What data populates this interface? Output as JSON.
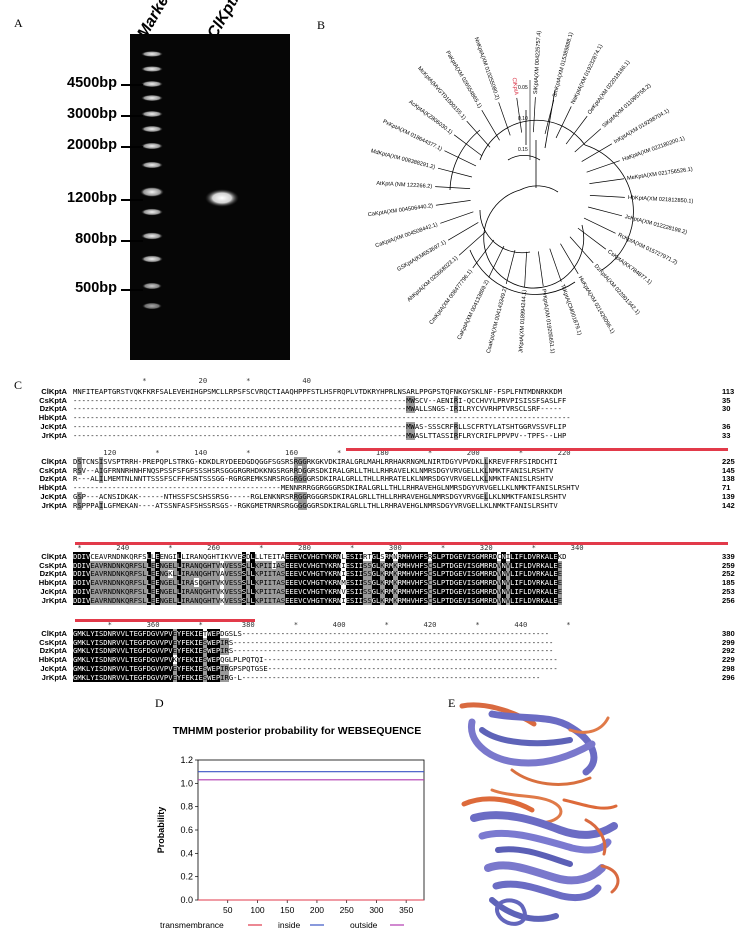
{
  "panels": {
    "a": "A",
    "b": "B",
    "c": "C",
    "d": "D",
    "e": "E"
  },
  "gel": {
    "lane_marker": "Marker",
    "lane_sample": "ClKptA",
    "marker_labels": [
      "4500bp",
      "3000bp",
      "2000bp",
      "1200bp",
      "800bp",
      "500bp"
    ]
  },
  "tree": {
    "highlight_color": "#d8263a",
    "scale_labels": [
      "0.05",
      "0.10",
      "0.15"
    ],
    "leaves": [
      "ClKptA",
      "SiKptA(XM 004225757.4)",
      "SmKptA(XM 015389888.1)",
      "NaKptA(XM 019232874.1)",
      "OeKptA(XM 022018166.1)",
      "SiKptA(XM 011095758.2)",
      "InKptA(XM 019298704.1)",
      "HaKptA(XM 022180200.1)",
      "MeKptA(XM 021756526.1)",
      "HbKptA(XM 021812850.1)",
      "JcKptA(XM 012228198.2)",
      "RcKptA(XM 015727971.2)",
      "CsKptA(KK784877.1)",
      "DzKptA(XM 022901342.1)",
      "HuKptA(XM 021426096.1)",
      "TcKptA(CM001879.1)",
      "PvKptA(XM 019205651.1)",
      "JrKptA(XM 018994244.1)",
      "CsaKptA(XM 004143349.2)",
      "CaKptA(XM 004133869.2)",
      "CmKptA(XM 008477796.1)",
      "AhKptA(XM 025668023.1)",
      "GSKptA(KM653697.1)",
      "CaKptA(XM 004508442.1)",
      "CaKptA(XM 004506440.2)",
      "AtKptA (NM 122266.2)",
      "MdKptA(XM 008388291.2)",
      "PxKptA(XM 018644377.1)",
      "AcKptA(KZ806030.1)",
      "McKptA(MVGT01000155.1)",
      "PaKptA(XM 026554865.1)",
      "NnKptA(XM 010255080.2)"
    ]
  },
  "alignment": {
    "blocks": [
      {
        "ruler": "                *            20         *            40",
        "rows": [
          {
            "name": "ClKptA",
            "seq": "MNFITEAPTGRSTVQKFKRFSALEVEHIHGPSMCLLRPSFSCVRQCTIAAQHPPFSTLHSFRQPLVTDKRYHPRLNSARLPPGPSTQFNKGYSKLNF-FSPLFNTMDNRKKDM",
            "num": "113"
          },
          {
            "name": "CsKptA",
            "seq": "-----------------------------------------------------------------------------MWSCV--AENIRI-QCCHVYLPRVPISISSFSASLFF",
            "num": "35"
          },
          {
            "name": "DzKptA",
            "seq": "-----------------------------------------------------------------------------MWALLSNGS-IRILRYCVVRHPTVRSCLSRF-----",
            "num": "30"
          },
          {
            "name": "HbKptA",
            "seq": "-------------------------------------------------------------------------------------------------------------------",
            "num": ""
          },
          {
            "name": "JcKptA",
            "seq": "-----------------------------------------------------------------------------MWAS-SSSCRFRLLSCFRTYLATSHTGGRVSSVFLIP",
            "num": "36"
          },
          {
            "name": "JrKptA",
            "seq": "-----------------------------------------------------------------------------MWASLTTASSIRFLRYCRIFLPPVPV--TPFS--LHP",
            "num": "33"
          }
        ]
      },
      {
        "ruler": "       120         *        140         *        160         *        180         *        200         *        220",
        "rows": [
          {
            "name": "ClKptA",
            "seq": "DSTCNSISVSPTRRH-PREPQPLSTRKG-KDKDLRYDEEDGDQGGFSGSRSRGGRKGKVDKIRALGRLMAHLRRHAKRNGMLNIRTDGYVPVDKLLKREVFFRFSIRDCHTI",
            "num": "225"
          },
          {
            "name": "CsKptA",
            "seq": "RSV--AIGFRNNRHNHFNQSPSSFSFGFSSSHSRSGGGRGRHDKKNGSRGRRDGGRSDKIRALGRLLTHLLRHRAVELKLNMRSDGYVRVGELLKLNMKTFANISLRSHTV",
            "num": "145"
          },
          {
            "name": "DzKptA",
            "seq": "R---ALILMEMTNLNNTTSSSFSCFFHSNTSSSGG-RGRGREMKSNRSRGGRGGGRSDKIRALGRLLTHLLRHRATELKLNMRSDGYVRVGELLKLNMKTFANISLRSHTV",
            "num": "138"
          },
          {
            "name": "HbKptA",
            "seq": "------------------------------------------------MENNRRRGGRGGGRSDKIRALGRLLTHLLRHRAVEHGLNMRSDGYVRVGELLKLNMKTFANISLRSHTV",
            "num": "71"
          },
          {
            "name": "JcKptA",
            "seq": "GSP---ACNSIDKAK------NTHSSFSCSHSSRSG-----RGLENKNRSRRGGRGGGRSDKIRALGRLLTHLLRHRAVEHGLNMRSDGYVRVGELLKLNMKTFANISLRSHTV",
            "num": "139"
          },
          {
            "name": "JrKptA",
            "seq": "RSPPPAILGFMEKAN----ATSSNFASFSHSSRSGS--RGKGMETRNRSRGGGGGGRSDKIRALGRLLTHLLRHRAVEHGLNMRSDGYVRVGELLKLNMKTFANISLRSHTV",
            "num": "142"
          }
        ]
      },
      {
        "ruler": " *        240         *        260         *        280         *        300         *        320         *        340",
        "rows": [
          {
            "name": "ClKptA",
            "seq": "DDIVCEAVRNDNKQRFSLLEENGILLIRANQGHTIKVVESDLLLTEITAEEEVCVHGTYKRNLESIIRTGLSRMNRMHVHFSRSLPTDGEVISGMRRDCNILIFLDVRKALEKD",
            "num": "339"
          },
          {
            "name": "CsKptA",
            "seq": "DDIVEAVRNDNKQRFSLLEENGELLIRANQGHTVNVESSSLLKPIIIASEEEVCVHGTYKRNIESIISSGLKRMKRMHVHFSCSLPTDGEVISGMRRDVNVLIFLDVRKALEE",
            "num": "259"
          },
          {
            "name": "DzKptA",
            "seq": "DDIVEAVRNDNKQRFSLLEENGKLLIRANQGHTVAVESSSLLKPIITASEEEVCVHGTYKRNIESIISSGLKRMKRMHVHFSCSLPTDGEVISGMRRDVNVLIFLDVRKALEE",
            "num": "252"
          },
          {
            "name": "HbKptA",
            "seq": "DDIVEAVRNDNKQRFSLLEENGELLIRASQGHTVKVESSSLLKPIITASEEEVCVHGTYKRNMESIISSGLKRMKRMHVHFSCSLPTDGEVISGMRRDVNVLIFLDVRKALEE",
            "num": "185"
          },
          {
            "name": "JcKptA",
            "seq": "DDIVEAVRNDNKQRFSLLEENGELLIRANQGHTVKVESSSLLKPIITASEEEVCVHGTYKRNVESIISSGLKRMKRMHVHFSCSLPTDGEVISGMRRDVNVLIFLDVRKALEE",
            "num": "253"
          },
          {
            "name": "JrKptA",
            "seq": "DDIVEAVRNDNKQRFSLLEENGELLIRANQGHTVKVESSSLLKPIITASEEEVCVHGTYKRNIESIISSGLKRMKRMHVHFSCSLPTDGEVISGMRRDVNVLIFLDVRKALEE",
            "num": "256"
          }
        ]
      },
      {
        "ruler": "        *        360         *         380         *        400         *        420         *        440         *",
        "rows": [
          {
            "name": "ClKptA",
            "seq": "GMKLYISDNRVVLTEGFDGVVPVEYFEKIETWEPDGSLS-----------------------------------------------------------------------",
            "num": "380"
          },
          {
            "name": "CsKptA",
            "seq": "GMKLYISDNRVVLTEGFDGVVPVEYFEKIESWEPIRS--------------------------------------------------------------------------",
            "num": "299"
          },
          {
            "name": "DzKptA",
            "seq": "GMKLYISDNRVVLTEGFDGVVPVEYFEKIESWEPIRS--------------------------------------------------------------------------",
            "num": "292"
          },
          {
            "name": "HbKptA",
            "seq": "GMKLYISDNRVVLTEGFDGVVPVKYFEKIESWEPQGLPLPQTQI--------------------------------------------------------------------",
            "num": "229"
          },
          {
            "name": "JcKptA",
            "seq": "GMKLYISDNRVVLTEGFDGVVPVEYFEKIESWEPIRGPSPQTGSE-------------------------------------------------------------------",
            "num": "298"
          },
          {
            "name": "JrKptA",
            "seq": "GMKLYISDNRVVLTEGFDGVVPVEYFEKIESWEPIRG-L---------------------------------------------------------------------",
            "num": "296"
          }
        ]
      }
    ]
  },
  "tmhmm": {
    "chart_data": {
      "type": "line",
      "title": "TMHMM posterior probability for WEBSEQUENCE",
      "xlabel": "",
      "ylabel": "Probability",
      "xlim": [
        0,
        380
      ],
      "ylim": [
        0,
        1.2
      ],
      "xticks": [
        "50",
        "100",
        "150",
        "200",
        "250",
        "300",
        "350"
      ],
      "yticks": [
        "0.0",
        "0.2",
        "0.4",
        "0.6",
        "0.8",
        "1.0",
        "1.2"
      ],
      "series": [
        {
          "name": "transmembrance",
          "color": "#e0384b",
          "x": [
            0,
            380
          ],
          "y": [
            0,
            0
          ]
        },
        {
          "name": "inside",
          "color": "#3b55c4",
          "x": [
            0,
            380
          ],
          "y": [
            1.1,
            1.1
          ]
        },
        {
          "name": "outside",
          "color": "#b23bb0",
          "x": [
            0,
            380
          ],
          "y": [
            1.03,
            1.03
          ]
        }
      ],
      "legend": [
        "transmembrance",
        "inside",
        "outside"
      ],
      "legend_position": "bottom"
    }
  }
}
